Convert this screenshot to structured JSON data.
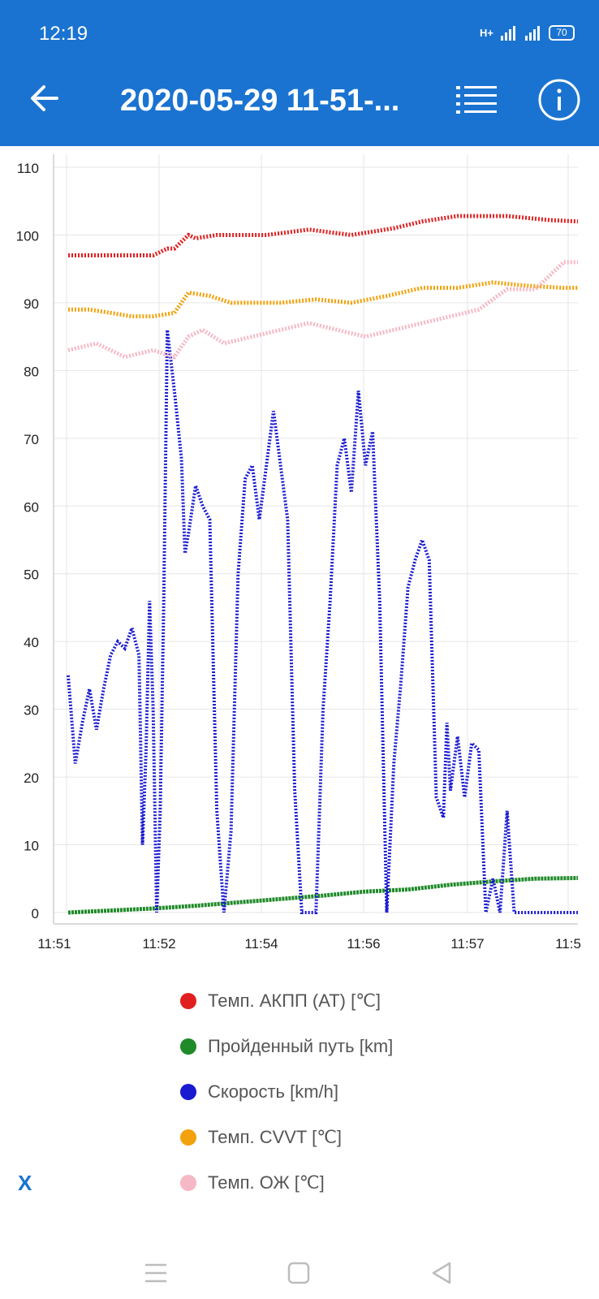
{
  "status_bar": {
    "time": "12:19",
    "network": "H+",
    "battery": "70"
  },
  "app_bar": {
    "title": "2020-05-29 11-51-...",
    "back_icon": "back-arrow-icon",
    "list_icon": "list-icon",
    "info_icon": "info-icon"
  },
  "chart_data": {
    "type": "line",
    "x_ticks": [
      "11:51",
      "11:52",
      "11:54",
      "11:56",
      "11:57",
      "11:5"
    ],
    "ylim": [
      0,
      110
    ],
    "y_ticks": [
      0,
      10,
      20,
      30,
      40,
      50,
      60,
      70,
      80,
      90,
      100,
      110
    ],
    "grid": true,
    "legend_position": "bottom",
    "x_range_minutes": [
      0,
      7.2
    ],
    "series": [
      {
        "name": "Темп. АКПП (АТ) [℃]",
        "color": "#e02020",
        "x": [
          0,
          0.4,
          0.8,
          1.2,
          1.4,
          1.5,
          1.7,
          1.8,
          2.1,
          2.8,
          3.4,
          4.0,
          4.6,
          5.0,
          5.5,
          6.2,
          6.8,
          7.2
        ],
        "y": [
          97,
          97,
          97,
          97,
          98,
          98,
          100,
          99.5,
          100,
          100,
          100.8,
          100,
          101,
          102,
          102.8,
          102.8,
          102.2,
          102
        ]
      },
      {
        "name": "Пройденный путь [km]",
        "color": "#1e8a28",
        "x": [
          0,
          0.6,
          1.2,
          1.8,
          2.4,
          3.0,
          3.6,
          4.2,
          4.8,
          5.4,
          6.0,
          6.6,
          7.2
        ],
        "y": [
          0,
          0.3,
          0.6,
          1.0,
          1.5,
          2.0,
          2.5,
          3.1,
          3.4,
          4.1,
          4.6,
          5.0,
          5.1
        ]
      },
      {
        "name": "Скорость [km/h]",
        "color": "#1a1ad0",
        "x": [
          0,
          0.1,
          0.2,
          0.3,
          0.4,
          0.5,
          0.6,
          0.7,
          0.8,
          0.9,
          1.0,
          1.05,
          1.1,
          1.15,
          1.2,
          1.25,
          1.3,
          1.35,
          1.4,
          1.5,
          1.6,
          1.65,
          1.7,
          1.8,
          1.9,
          2.0,
          2.1,
          2.2,
          2.3,
          2.4,
          2.5,
          2.6,
          2.7,
          2.8,
          2.9,
          3.0,
          3.1,
          3.2,
          3.3,
          3.4,
          3.5,
          3.6,
          3.7,
          3.8,
          3.9,
          4.0,
          4.1,
          4.2,
          4.3,
          4.4,
          4.5,
          4.6,
          4.7,
          4.8,
          4.9,
          5.0,
          5.1,
          5.2,
          5.3,
          5.35,
          5.4,
          5.5,
          5.6,
          5.7,
          5.8,
          5.9,
          6.0,
          6.1,
          6.2,
          6.3,
          6.4,
          6.5,
          6.6,
          6.7,
          6.8,
          6.9,
          7.0,
          7.1,
          7.2
        ],
        "y": [
          35,
          22,
          28,
          33,
          27,
          33,
          38,
          40,
          39,
          42,
          38,
          10,
          24,
          46,
          30,
          0,
          15,
          46,
          86,
          77,
          67,
          53,
          56,
          63,
          60,
          58,
          15,
          0,
          12,
          50,
          64,
          66,
          58,
          66,
          74,
          66,
          58,
          18,
          0,
          0,
          0,
          30,
          46,
          66,
          70,
          62,
          77,
          66,
          71,
          46,
          0,
          22,
          34,
          48,
          52,
          55,
          52,
          17,
          14,
          28,
          18,
          26,
          17,
          25,
          24,
          0,
          5,
          0,
          15,
          0,
          0,
          0,
          0,
          0,
          0,
          0,
          0,
          0,
          0
        ]
      },
      {
        "name": "Темп. CVVT [℃]",
        "color": "#f2a20c",
        "x": [
          0,
          0.3,
          0.6,
          0.9,
          1.2,
          1.5,
          1.7,
          2.0,
          2.3,
          2.6,
          3.0,
          3.5,
          4.0,
          4.5,
          5.0,
          5.5,
          6.0,
          6.5,
          7.0,
          7.2
        ],
        "y": [
          89,
          89,
          88.5,
          88,
          88,
          88.5,
          91.5,
          91,
          90,
          90,
          90,
          90.5,
          90,
          91,
          92.2,
          92.2,
          93,
          92.5,
          92.2,
          92.2
        ]
      },
      {
        "name": "Темп. ОЖ [℃]",
        "color": "#f6b8c4",
        "x": [
          0,
          0.4,
          0.8,
          1.2,
          1.5,
          1.7,
          1.9,
          2.2,
          2.6,
          3.0,
          3.4,
          3.8,
          4.2,
          4.6,
          5.0,
          5.4,
          5.8,
          6.2,
          6.6,
          7.0,
          7.2
        ],
        "y": [
          83,
          84,
          82,
          83,
          82,
          85,
          86,
          84,
          85,
          86,
          87,
          86,
          85,
          86,
          87,
          88,
          89,
          92,
          92,
          96,
          96
        ]
      }
    ]
  },
  "legend_marker": "●",
  "x_button_label": "X",
  "nav_bar": {
    "menu_icon": "menu-icon",
    "home_icon": "home-icon",
    "back_icon": "back-triangle-icon"
  }
}
